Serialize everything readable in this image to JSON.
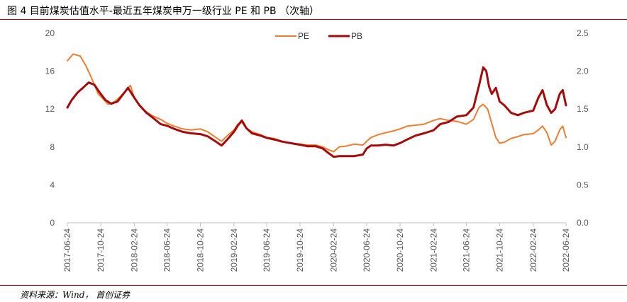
{
  "title": "图 4 目前煤炭估值水平-最近五年煤炭申万一级行业 PE 和 PB （次轴）",
  "source": "资料来源：Wind， 首创证券",
  "colors": {
    "pe": "#ed7d31",
    "pb": "#a50a0a",
    "rule": "#c00000",
    "axis": "#bfbfbf",
    "tick_text": "#595959"
  },
  "chart_data": {
    "type": "line",
    "x_dates": [
      "2017-06-24",
      "2017-10-24",
      "2018-02-24",
      "2018-06-24",
      "2018-10-24",
      "2019-02-24",
      "2019-06-24",
      "2019-10-24",
      "2020-02-24",
      "2020-06-24",
      "2020-10-24",
      "2021-02-24",
      "2021-06-24",
      "2021-10-24",
      "2022-02-24",
      "2022-06-24"
    ],
    "x_range": [
      "2017-06-24",
      "2022-06-24"
    ],
    "y_left": {
      "ticks": [
        0,
        4,
        8,
        12,
        16,
        20
      ],
      "range": [
        0,
        20
      ]
    },
    "y_right": {
      "ticks": [
        "0.0",
        "0.5",
        "1.0",
        "1.5",
        "2.0",
        "2.5"
      ],
      "range": [
        0,
        2.5
      ]
    },
    "legend": {
      "position": "top-center",
      "entries": [
        "PE",
        "PB"
      ]
    },
    "series": [
      {
        "name": "PE",
        "axis": "left",
        "color": "#ed7d31",
        "points": [
          [
            "2017-06-24",
            17.1
          ],
          [
            "2017-07-15",
            17.8
          ],
          [
            "2017-08-10",
            17.6
          ],
          [
            "2017-09-01",
            16.5
          ],
          [
            "2017-09-20",
            15.3
          ],
          [
            "2017-10-15",
            13.6
          ],
          [
            "2017-11-01",
            13.1
          ],
          [
            "2017-11-20",
            12.5
          ],
          [
            "2017-12-15",
            12.8
          ],
          [
            "2018-01-10",
            13.5
          ],
          [
            "2018-01-25",
            14.0
          ],
          [
            "2018-02-10",
            14.5
          ],
          [
            "2018-02-24",
            13.2
          ],
          [
            "2018-03-15",
            12.4
          ],
          [
            "2018-04-05",
            11.8
          ],
          [
            "2018-05-01",
            11.3
          ],
          [
            "2018-06-01",
            10.9
          ],
          [
            "2018-06-24",
            10.5
          ],
          [
            "2018-07-20",
            10.2
          ],
          [
            "2018-08-20",
            9.9
          ],
          [
            "2018-09-20",
            9.8
          ],
          [
            "2018-10-24",
            9.9
          ],
          [
            "2018-11-20",
            9.6
          ],
          [
            "2018-12-20",
            9.0
          ],
          [
            "2019-01-10",
            8.6
          ],
          [
            "2019-01-31",
            9.2
          ],
          [
            "2019-02-24",
            9.8
          ],
          [
            "2019-03-10",
            10.4
          ],
          [
            "2019-03-25",
            10.6
          ],
          [
            "2019-04-10",
            10.0
          ],
          [
            "2019-05-01",
            9.6
          ],
          [
            "2019-06-01",
            9.3
          ],
          [
            "2019-06-24",
            9.0
          ],
          [
            "2019-07-20",
            8.9
          ],
          [
            "2019-08-20",
            8.6
          ],
          [
            "2019-09-20",
            8.4
          ],
          [
            "2019-10-24",
            8.3
          ],
          [
            "2019-11-20",
            8.2
          ],
          [
            "2019-12-20",
            8.2
          ],
          [
            "2020-01-15",
            8.0
          ],
          [
            "2020-02-05",
            7.7
          ],
          [
            "2020-02-24",
            7.5
          ],
          [
            "2020-03-15",
            8.0
          ],
          [
            "2020-04-10",
            8.1
          ],
          [
            "2020-05-10",
            8.3
          ],
          [
            "2020-06-10",
            8.2
          ],
          [
            "2020-06-24",
            8.6
          ],
          [
            "2020-07-10",
            9.0
          ],
          [
            "2020-08-05",
            9.3
          ],
          [
            "2020-09-01",
            9.5
          ],
          [
            "2020-10-01",
            9.7
          ],
          [
            "2020-10-24",
            9.9
          ],
          [
            "2020-11-20",
            10.2
          ],
          [
            "2020-12-20",
            10.3
          ],
          [
            "2021-01-20",
            10.4
          ],
          [
            "2021-02-24",
            10.8
          ],
          [
            "2021-03-20",
            11.0
          ],
          [
            "2021-04-20",
            10.8
          ],
          [
            "2021-05-20",
            10.7
          ],
          [
            "2021-06-24",
            10.4
          ],
          [
            "2021-07-20",
            10.9
          ],
          [
            "2021-08-10",
            12.2
          ],
          [
            "2021-08-25",
            12.5
          ],
          [
            "2021-09-10",
            12.0
          ],
          [
            "2021-09-25",
            10.5
          ],
          [
            "2021-10-10",
            9.0
          ],
          [
            "2021-10-24",
            8.4
          ],
          [
            "2021-11-10",
            8.5
          ],
          [
            "2021-12-05",
            8.9
          ],
          [
            "2021-12-30",
            9.1
          ],
          [
            "2022-01-20",
            9.3
          ],
          [
            "2022-02-24",
            9.4
          ],
          [
            "2022-03-15",
            9.8
          ],
          [
            "2022-03-30",
            10.2
          ],
          [
            "2022-04-15",
            9.5
          ],
          [
            "2022-05-01",
            8.2
          ],
          [
            "2022-05-15",
            8.6
          ],
          [
            "2022-06-01",
            9.8
          ],
          [
            "2022-06-12",
            10.2
          ],
          [
            "2022-06-24",
            9.0
          ]
        ]
      },
      {
        "name": "PB",
        "axis": "right",
        "color": "#a50a0a",
        "points": [
          [
            "2017-06-24",
            1.52
          ],
          [
            "2017-07-10",
            1.62
          ],
          [
            "2017-08-01",
            1.72
          ],
          [
            "2017-08-20",
            1.78
          ],
          [
            "2017-09-10",
            1.85
          ],
          [
            "2017-10-01",
            1.82
          ],
          [
            "2017-10-20",
            1.72
          ],
          [
            "2017-11-10",
            1.62
          ],
          [
            "2017-12-01",
            1.57
          ],
          [
            "2017-12-25",
            1.6
          ],
          [
            "2018-01-15",
            1.7
          ],
          [
            "2018-02-01",
            1.78
          ],
          [
            "2018-02-24",
            1.65
          ],
          [
            "2018-03-15",
            1.55
          ],
          [
            "2018-04-10",
            1.45
          ],
          [
            "2018-05-05",
            1.38
          ],
          [
            "2018-06-01",
            1.3
          ],
          [
            "2018-06-24",
            1.28
          ],
          [
            "2018-07-20",
            1.24
          ],
          [
            "2018-08-20",
            1.2
          ],
          [
            "2018-09-20",
            1.18
          ],
          [
            "2018-10-24",
            1.17
          ],
          [
            "2018-11-20",
            1.14
          ],
          [
            "2018-12-20",
            1.07
          ],
          [
            "2019-01-10",
            1.02
          ],
          [
            "2019-01-31",
            1.1
          ],
          [
            "2019-02-24",
            1.2
          ],
          [
            "2019-03-10",
            1.28
          ],
          [
            "2019-03-25",
            1.35
          ],
          [
            "2019-04-10",
            1.25
          ],
          [
            "2019-05-01",
            1.18
          ],
          [
            "2019-06-01",
            1.15
          ],
          [
            "2019-06-24",
            1.12
          ],
          [
            "2019-07-20",
            1.1
          ],
          [
            "2019-08-20",
            1.07
          ],
          [
            "2019-09-20",
            1.05
          ],
          [
            "2019-10-24",
            1.03
          ],
          [
            "2019-11-20",
            1.01
          ],
          [
            "2019-12-20",
            1.01
          ],
          [
            "2020-01-15",
            0.98
          ],
          [
            "2020-02-05",
            0.92
          ],
          [
            "2020-02-24",
            0.87
          ],
          [
            "2020-03-15",
            0.88
          ],
          [
            "2020-04-10",
            0.88
          ],
          [
            "2020-05-10",
            0.88
          ],
          [
            "2020-06-10",
            0.9
          ],
          [
            "2020-06-24",
            0.98
          ],
          [
            "2020-07-10",
            1.02
          ],
          [
            "2020-08-05",
            1.02
          ],
          [
            "2020-09-01",
            1.03
          ],
          [
            "2020-10-01",
            1.02
          ],
          [
            "2020-10-24",
            1.05
          ],
          [
            "2020-11-20",
            1.1
          ],
          [
            "2020-12-20",
            1.15
          ],
          [
            "2021-01-20",
            1.18
          ],
          [
            "2021-02-24",
            1.22
          ],
          [
            "2021-03-20",
            1.3
          ],
          [
            "2021-04-20",
            1.33
          ],
          [
            "2021-05-20",
            1.4
          ],
          [
            "2021-06-24",
            1.42
          ],
          [
            "2021-07-20",
            1.52
          ],
          [
            "2021-08-10",
            1.82
          ],
          [
            "2021-08-25",
            2.05
          ],
          [
            "2021-09-05",
            2.0
          ],
          [
            "2021-09-15",
            1.8
          ],
          [
            "2021-09-25",
            1.7
          ],
          [
            "2021-10-10",
            1.78
          ],
          [
            "2021-10-24",
            1.6
          ],
          [
            "2021-11-10",
            1.55
          ],
          [
            "2021-12-05",
            1.45
          ],
          [
            "2021-12-30",
            1.42
          ],
          [
            "2022-01-20",
            1.45
          ],
          [
            "2022-02-24",
            1.48
          ],
          [
            "2022-03-15",
            1.65
          ],
          [
            "2022-03-30",
            1.75
          ],
          [
            "2022-04-15",
            1.55
          ],
          [
            "2022-05-01",
            1.45
          ],
          [
            "2022-05-15",
            1.5
          ],
          [
            "2022-06-01",
            1.7
          ],
          [
            "2022-06-12",
            1.75
          ],
          [
            "2022-06-24",
            1.55
          ]
        ]
      }
    ]
  }
}
